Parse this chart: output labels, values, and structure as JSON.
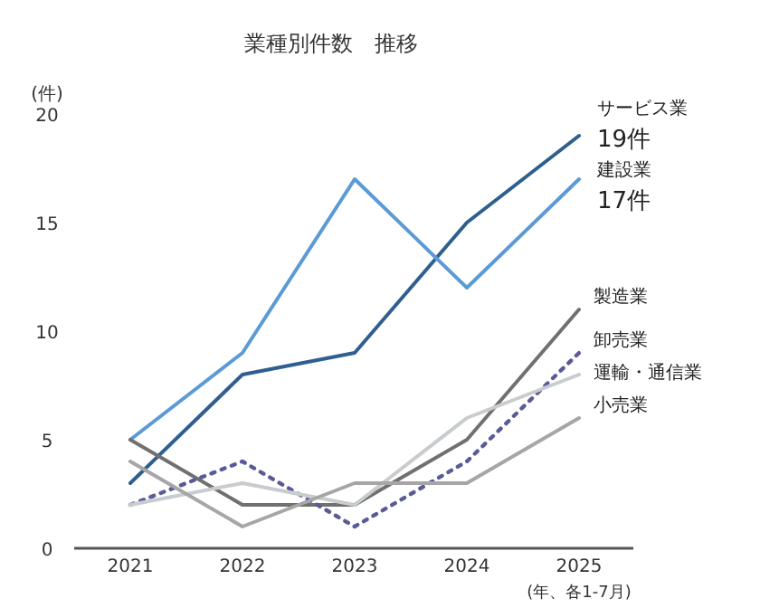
{
  "chart_data": {
    "type": "line",
    "title": "業種別件数　推移",
    "ylabel": "(件)",
    "annotations": [
      "(年、各1-7月)"
    ],
    "categories": [
      "2021",
      "2022",
      "2023",
      "2024",
      "2025"
    ],
    "ylim": [
      0,
      20
    ],
    "yticks": [
      0,
      5,
      10,
      15,
      20
    ],
    "grid": false,
    "legend": false,
    "series": [
      {
        "name": "サービス業",
        "color": "#2f5f8f",
        "values": [
          3,
          8,
          9,
          15,
          19
        ],
        "value_labels": [
          null,
          null,
          null,
          null,
          "19件"
        ]
      },
      {
        "name": "建設業",
        "color": "#5b9bd5",
        "values": [
          5,
          9,
          17,
          12,
          17
        ],
        "value_labels": [
          null,
          null,
          null,
          null,
          "17件"
        ]
      },
      {
        "name": "製造業",
        "color": "#707070",
        "values": [
          5,
          2,
          2,
          5,
          11
        ]
      },
      {
        "name": "卸売業",
        "color": "#5a5a9a",
        "values": [
          2,
          4,
          1,
          4,
          9
        ],
        "line_style": "dotted"
      },
      {
        "name": "運輸・通信業",
        "color": "#c8cccf",
        "values": [
          2,
          3,
          2,
          6,
          8
        ]
      },
      {
        "name": "小売業",
        "color": "#a6a6a6",
        "values": [
          4,
          1,
          3,
          3,
          6
        ]
      }
    ]
  }
}
